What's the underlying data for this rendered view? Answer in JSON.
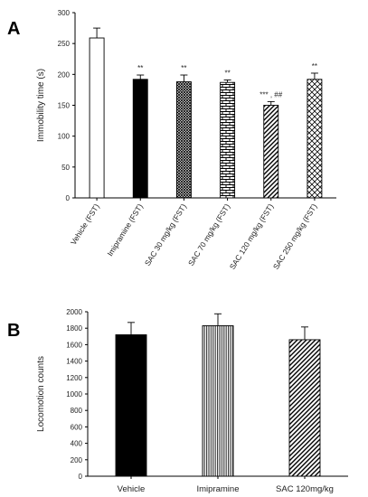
{
  "panels": {
    "a": "A",
    "b": "B"
  },
  "chart_data": [
    {
      "type": "bar",
      "panel": "A",
      "ylabel": "Immobility time (s)",
      "ylim": [
        0,
        300
      ],
      "yticks": [
        0,
        50,
        100,
        150,
        200,
        250,
        300
      ],
      "categories": [
        "Vehicle (FST)",
        "Imipramine (FST)",
        "SAC 30  mg/kg (FST)",
        "SAC 70  mg/kg (FST)",
        "SAC 120  mg/kg (FST)",
        "SAC 250  mg/kg (FST)"
      ],
      "values": [
        259,
        192,
        188,
        187,
        150,
        192
      ],
      "errors": [
        16,
        7,
        11,
        4,
        6,
        10
      ],
      "annotations": [
        "",
        "**",
        "**",
        "**",
        "***  , ##",
        "**"
      ],
      "fills": [
        "white",
        "black",
        "crosshatch",
        "brick",
        "diagonal",
        "diamond"
      ]
    },
    {
      "type": "bar",
      "panel": "B",
      "ylabel": "Locomotion counts",
      "ylim": [
        0,
        2000
      ],
      "yticks": [
        0,
        200,
        400,
        600,
        800,
        1000,
        1200,
        1400,
        1600,
        1800,
        2000
      ],
      "categories": [
        "Vehicle",
        "Imipramine",
        "SAC 120mg/kg"
      ],
      "values": [
        1720,
        1830,
        1660
      ],
      "errors": [
        150,
        145,
        155
      ],
      "fills": [
        "black",
        "vertical-lines",
        "diagonal"
      ]
    }
  ]
}
